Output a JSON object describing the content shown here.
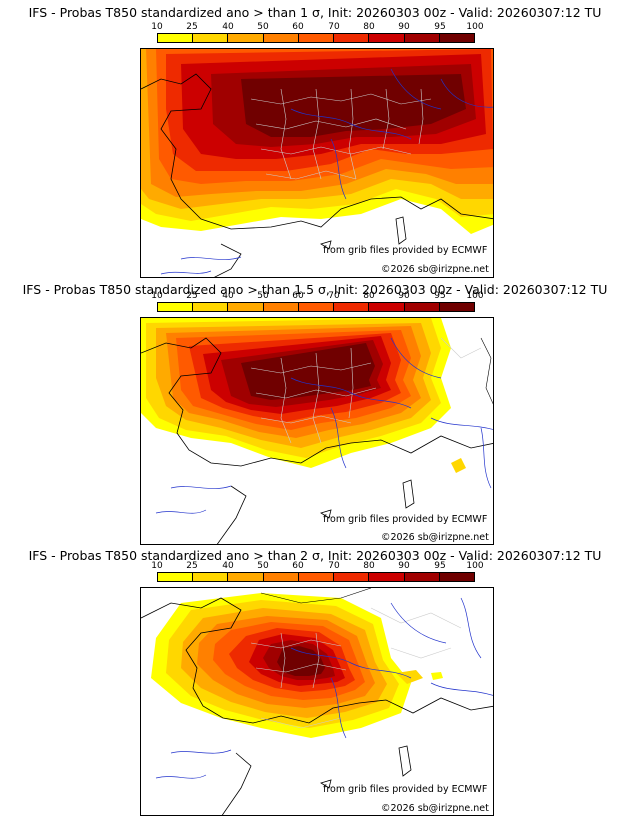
{
  "colors": {
    "levels": [
      "#ffff00",
      "#ffd700",
      "#ffaa00",
      "#ff8000",
      "#ff5a00",
      "#ee2a00",
      "#cc0000",
      "#a00000",
      "#700000"
    ],
    "sea": "#ffffff",
    "coast": "#000000",
    "rivers": "#2233cc",
    "borders": "#cccccc"
  },
  "colorbar": {
    "ticks": [
      "10",
      "25",
      "40",
      "50",
      "60",
      "70",
      "80",
      "90",
      "95",
      "100"
    ]
  },
  "panels": [
    {
      "title": "IFS - Probas T850  standardized ano > than 1 σ, Init: 20260303 00z - Valid: 20260307:12 TU",
      "credit_source": "from grib files provided by ECMWF",
      "credit_copy": "©2026 sb@irizpne.net"
    },
    {
      "title": "IFS - Probas T850  standardized ano > than 1.5 σ, Init: 20260303 00z - Valid: 20260307:12 TU",
      "credit_source": "from grib files provided by ECMWF",
      "credit_copy": "©2026 sb@irizpne.net"
    },
    {
      "title": "IFS - Probas T850  standardized ano > than 2 σ, Init: 20260303 00z - Valid: 20260307:12 TU",
      "credit_source": "from grib files provided by ECMWF",
      "credit_copy": "©2026 sb@irizpne.net"
    }
  ]
}
